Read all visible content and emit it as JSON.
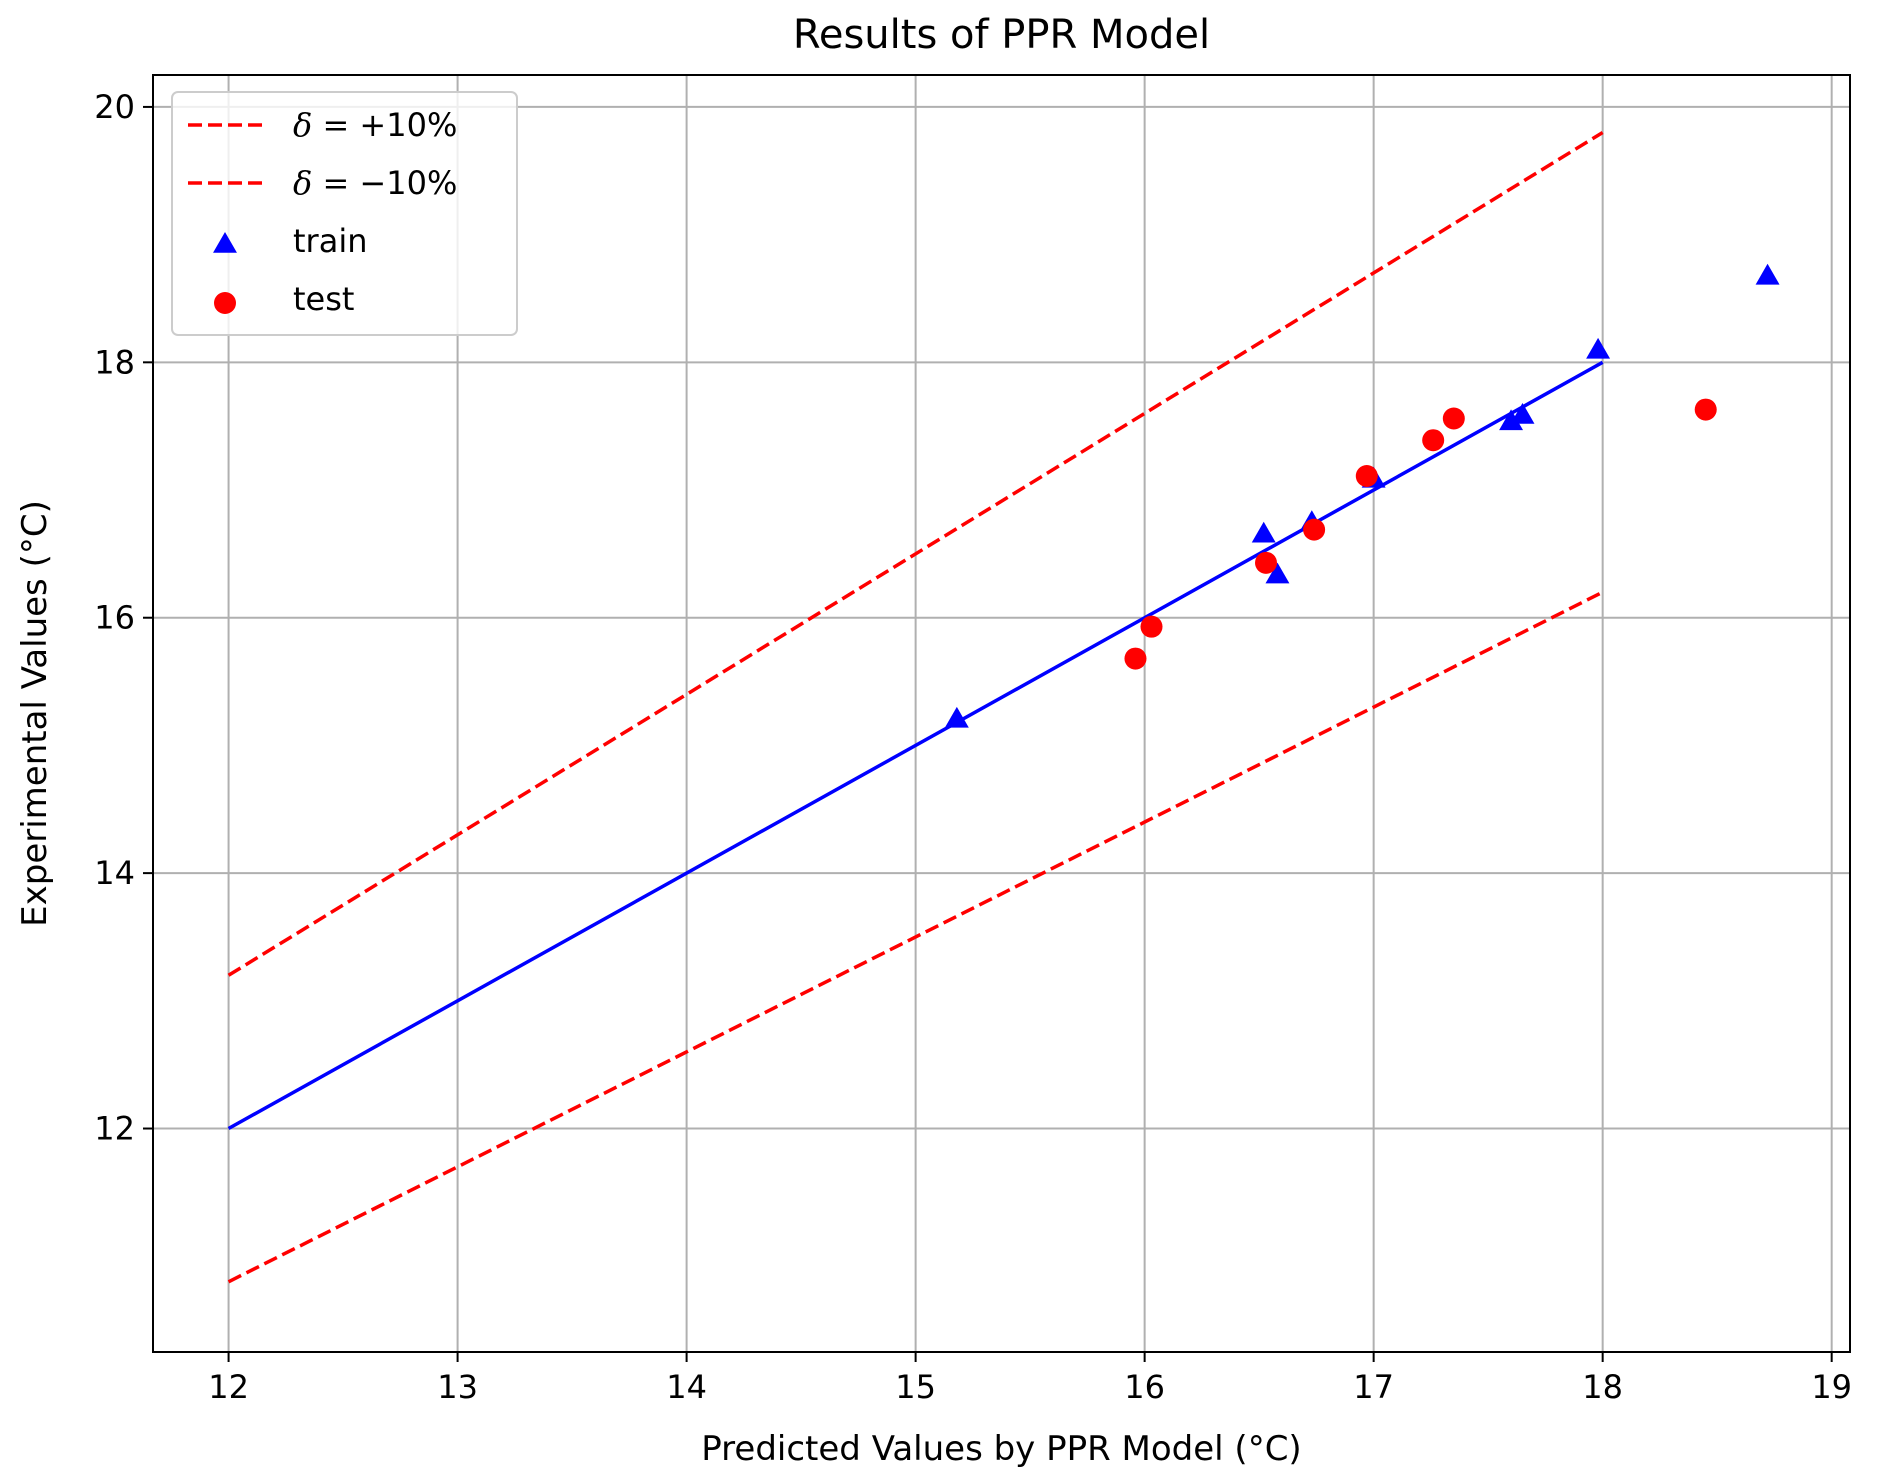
{
  "chart_data": {
    "type": "scatter",
    "title": "Results of PPR Model",
    "xlabel": "Predicted Values by PPR Model (°C)",
    "ylabel": "Experimental Values (°C)",
    "xlim": [
      11.67,
      19.08
    ],
    "ylim": [
      10.25,
      20.25
    ],
    "xticks": [
      12,
      13,
      14,
      15,
      16,
      17,
      18,
      19
    ],
    "yticks": [
      12,
      14,
      16,
      18,
      20
    ],
    "grid": true,
    "legend_position": "upper-left",
    "colors": {
      "bounds": "#ff0000",
      "ideal": "#0000ff",
      "train": "#0000ff",
      "test": "#ff0000",
      "grid": "#b0b0b0"
    },
    "lines": [
      {
        "name": "δ = +10%",
        "label_prefix": "δ = ",
        "label_suffix": "+10%",
        "style": "dashed",
        "color": "#ff0000",
        "x": [
          12,
          18
        ],
        "y": [
          13.2,
          19.8
        ],
        "in_legend": true
      },
      {
        "name": "δ = −10%",
        "label_prefix": "δ = ",
        "label_suffix": "−10%",
        "style": "dashed",
        "color": "#ff0000",
        "x": [
          12,
          18
        ],
        "y": [
          10.8,
          16.2
        ],
        "in_legend": true
      },
      {
        "name": "",
        "style": "solid",
        "color": "#0000ff",
        "x": [
          12,
          18
        ],
        "y": [
          12,
          18
        ],
        "in_legend": false
      }
    ],
    "series": [
      {
        "name": "train",
        "marker": "triangle",
        "color": "#0000ff",
        "points": [
          {
            "x": 15.18,
            "y": 15.2
          },
          {
            "x": 16.52,
            "y": 16.65
          },
          {
            "x": 16.58,
            "y": 16.33
          },
          {
            "x": 16.73,
            "y": 16.74
          },
          {
            "x": 17.0,
            "y": 17.08
          },
          {
            "x": 17.6,
            "y": 17.53
          },
          {
            "x": 17.65,
            "y": 17.58
          },
          {
            "x": 17.98,
            "y": 18.09
          },
          {
            "x": 18.72,
            "y": 18.67
          }
        ]
      },
      {
        "name": "test",
        "marker": "circle",
        "color": "#ff0000",
        "points": [
          {
            "x": 15.96,
            "y": 15.68
          },
          {
            "x": 16.03,
            "y": 15.93
          },
          {
            "x": 16.53,
            "y": 16.43
          },
          {
            "x": 16.74,
            "y": 16.69
          },
          {
            "x": 16.97,
            "y": 17.11
          },
          {
            "x": 17.26,
            "y": 17.39
          },
          {
            "x": 17.35,
            "y": 17.56
          },
          {
            "x": 18.45,
            "y": 17.63
          }
        ]
      }
    ]
  }
}
